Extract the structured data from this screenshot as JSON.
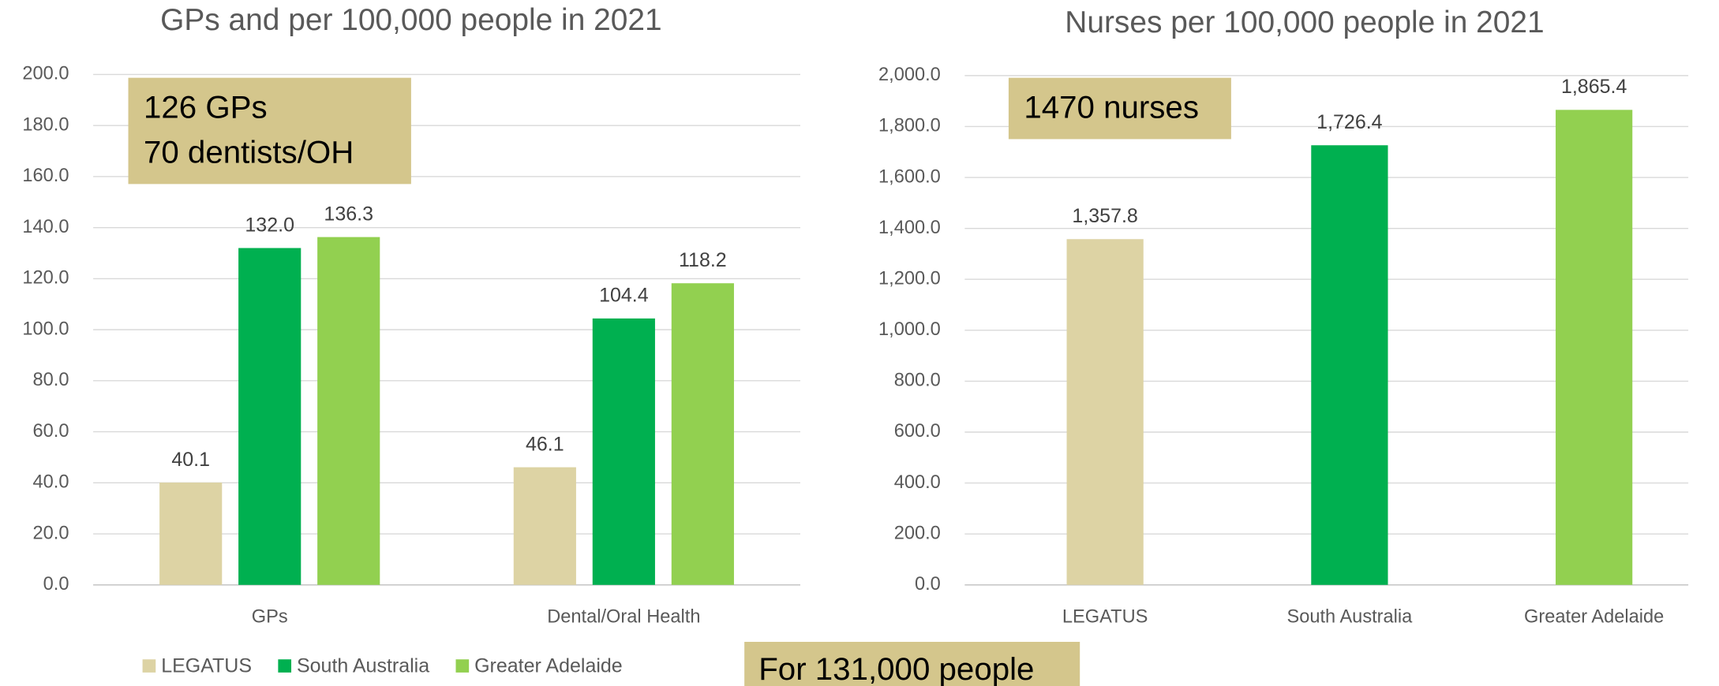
{
  "chart_data": [
    {
      "type": "bar",
      "title": "GPs and per 100,000 people in 2021",
      "categories": [
        "GPs",
        "Dental/Oral Health"
      ],
      "series": [
        {
          "name": "LEGATUS",
          "color": "#ddd3a4",
          "values": [
            40.1,
            46.1
          ],
          "value_labels": [
            "40.1",
            "46.1"
          ]
        },
        {
          "name": "South Australia",
          "color": "#00b050",
          "values": [
            132.0,
            104.4
          ],
          "value_labels": [
            "132.0",
            "104.4"
          ]
        },
        {
          "name": "Greater Adelaide",
          "color": "#92d050",
          "values": [
            136.3,
            118.2
          ],
          "value_labels": [
            "136.3",
            "118.2"
          ]
        }
      ],
      "ylim": [
        0,
        200
      ],
      "yticks": [
        {
          "value": 0,
          "label": "0.0"
        },
        {
          "value": 20,
          "label": "20.0"
        },
        {
          "value": 40,
          "label": "40.0"
        },
        {
          "value": 60,
          "label": "60.0"
        },
        {
          "value": 80,
          "label": "80.0"
        },
        {
          "value": 100,
          "label": "100.0"
        },
        {
          "value": 120,
          "label": "120.0"
        },
        {
          "value": 140,
          "label": "140.0"
        },
        {
          "value": 160,
          "label": "160.0"
        },
        {
          "value": 180,
          "label": "180.0"
        },
        {
          "value": 200,
          "label": "200.0"
        }
      ],
      "grid": true,
      "legend": "bottom",
      "annotations": [
        "126 GPs",
        "70 dentists/OH"
      ]
    },
    {
      "type": "bar",
      "title": "Nurses per 100,000 people in 2021",
      "categories": [
        "LEGATUS",
        "South Australia",
        "Greater Adelaide"
      ],
      "values": [
        1357.8,
        1726.4,
        1865.4
      ],
      "value_labels": [
        "1,357.8",
        "1,726.4",
        "1,865.4"
      ],
      "colors": [
        "#ddd3a4",
        "#00b050",
        "#92d050"
      ],
      "ylim": [
        0,
        2000
      ],
      "yticks": [
        {
          "value": 0,
          "label": "0.0"
        },
        {
          "value": 200,
          "label": "200.0"
        },
        {
          "value": 400,
          "label": "400.0"
        },
        {
          "value": 600,
          "label": "600.0"
        },
        {
          "value": 800,
          "label": "800.0"
        },
        {
          "value": 1000,
          "label": "1,000.0"
        },
        {
          "value": 1200,
          "label": "1,200.0"
        },
        {
          "value": 1400,
          "label": "1,400.0"
        },
        {
          "value": 1600,
          "label": "1,600.0"
        },
        {
          "value": 1800,
          "label": "1,800.0"
        },
        {
          "value": 2000,
          "label": "2,000.0"
        }
      ],
      "grid": true,
      "annotations": [
        "1470 nurses"
      ]
    }
  ],
  "footnote": "For 131,000 people"
}
